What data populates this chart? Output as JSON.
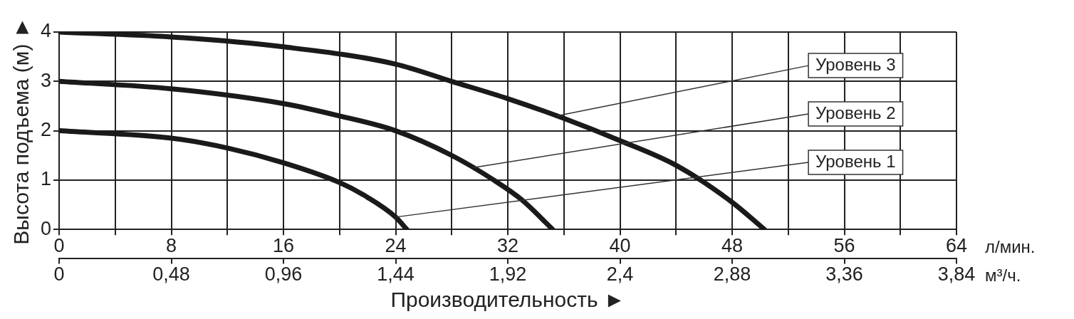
{
  "chart_data": {
    "type": "line",
    "xlabel": "Производительность ►",
    "ylabel": "Высота подъема (м) ►",
    "xlim": [
      0,
      64
    ],
    "xticks": [
      0,
      {
        "value": 4,
        "label": null
      },
      8,
      {
        "value": 12,
        "label": null
      },
      16,
      {
        "value": 20,
        "label": null
      },
      24,
      {
        "value": 28,
        "label": null
      },
      32,
      {
        "value": 36,
        "label": null
      },
      40,
      {
        "value": 44,
        "label": null
      },
      48,
      {
        "value": 52,
        "label": null
      },
      56,
      {
        "value": 60,
        "label": null
      },
      64
    ],
    "x2lim": [
      0,
      3.84
    ],
    "x2ticks": [
      0,
      {
        "value": 0.48,
        "label": "0,48"
      },
      {
        "value": 0.96,
        "label": "0,96"
      },
      {
        "value": 1.44,
        "label": "1,44"
      },
      {
        "value": 1.92,
        "label": "1,92"
      },
      {
        "value": 2.4,
        "label": "2,4"
      },
      {
        "value": 2.88,
        "label": "2,88"
      },
      {
        "value": 3.36,
        "label": "3,36"
      },
      {
        "value": 3.84,
        "label": "3,84"
      }
    ],
    "ylim": [
      0,
      4
    ],
    "yticks": [
      0,
      1,
      2,
      3,
      4
    ],
    "grid": true,
    "legend": false,
    "marker": "none",
    "line_style": "solid",
    "series": [
      {
        "color": "#1a1a1a",
        "x": [
          0,
          8,
          12,
          16,
          20,
          22,
          24,
          24.8
        ],
        "values": [
          2.0,
          1.85,
          1.65,
          1.35,
          0.95,
          0.65,
          0.25,
          0
        ]
      },
      {
        "color": "#1a1a1a",
        "x": [
          0,
          8,
          16,
          20,
          24,
          28,
          31,
          33,
          35.2
        ],
        "values": [
          3.0,
          2.85,
          2.55,
          2.3,
          2.0,
          1.5,
          1.0,
          0.6,
          0
        ]
      },
      {
        "color": "#1a1a1a",
        "x": [
          0,
          8,
          16,
          24,
          28,
          32,
          36,
          40,
          44,
          48,
          50.3
        ],
        "values": [
          4.0,
          3.9,
          3.7,
          3.35,
          3.0,
          2.65,
          2.25,
          1.8,
          1.3,
          0.55,
          0
        ]
      }
    ],
    "annotations": [
      "л/мин.",
      "м³/ч.",
      {
        "text": "Уровень 3",
        "x": 35.5,
        "y": 2.3
      },
      {
        "text": "Уровень 2",
        "x": 29.5,
        "y": 1.25
      },
      {
        "text": "Уровень 1",
        "x": 24,
        "y": 0.25
      }
    ]
  }
}
